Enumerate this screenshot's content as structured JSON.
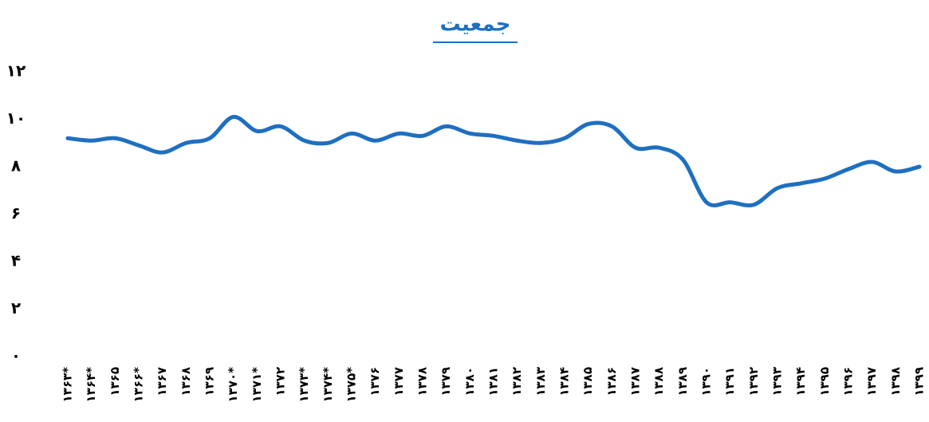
{
  "chart_data": {
    "type": "line",
    "title": "جمعیت",
    "categories": [
      "۱۳۶۳*",
      "۱۳۶۴*",
      "۱۳۶۵",
      "۱۳۶۶*",
      "۱۳۶۷",
      "۱۳۶۸",
      "۱۳۶۹",
      "۱۳۷۰*",
      "۱۳۷۱*",
      "۱۳۷۲",
      "۱۳۷۳*",
      "۱۳۷۴*",
      "۱۳۷۵*",
      "۱۳۷۶",
      "۱۳۷۷",
      "۱۳۷۸",
      "۱۳۷۹",
      "۱۳۸۰",
      "۱۳۸۱",
      "۱۳۸۲",
      "۱۳۸۳",
      "۱۳۸۴",
      "۱۳۸۵",
      "۱۳۸۶",
      "۱۳۸۷",
      "۱۳۸۸",
      "۱۳۸۹",
      "۱۳۹۰",
      "۱۳۹۱",
      "۱۳۹۲",
      "۱۳۹۳",
      "۱۳۹۴",
      "۱۳۹۵",
      "۱۳۹۶",
      "۱۳۹۷",
      "۱۳۹۸",
      "۱۳۹۹"
    ],
    "values": [
      9.2,
      9.1,
      9.2,
      8.9,
      8.6,
      9.0,
      9.2,
      10.1,
      9.5,
      9.7,
      9.1,
      9.0,
      9.4,
      9.1,
      9.4,
      9.3,
      9.7,
      9.4,
      9.3,
      9.1,
      9.0,
      9.2,
      9.8,
      9.7,
      8.8,
      8.8,
      8.3,
      6.5,
      6.5,
      6.4,
      7.1,
      7.3,
      7.5,
      7.9,
      8.2,
      7.8,
      8.0
    ],
    "color": "#1f6fc1",
    "ylim": [
      0,
      12
    ],
    "yticks": [
      {
        "value": 0,
        "label": "۰"
      },
      {
        "value": 2,
        "label": "۲"
      },
      {
        "value": 4,
        "label": "۴"
      },
      {
        "value": 6,
        "label": "۶"
      },
      {
        "value": 8,
        "label": "۸"
      },
      {
        "value": 10,
        "label": "۱۰"
      },
      {
        "value": 12,
        "label": "۱۲"
      }
    ],
    "grid": false
  }
}
